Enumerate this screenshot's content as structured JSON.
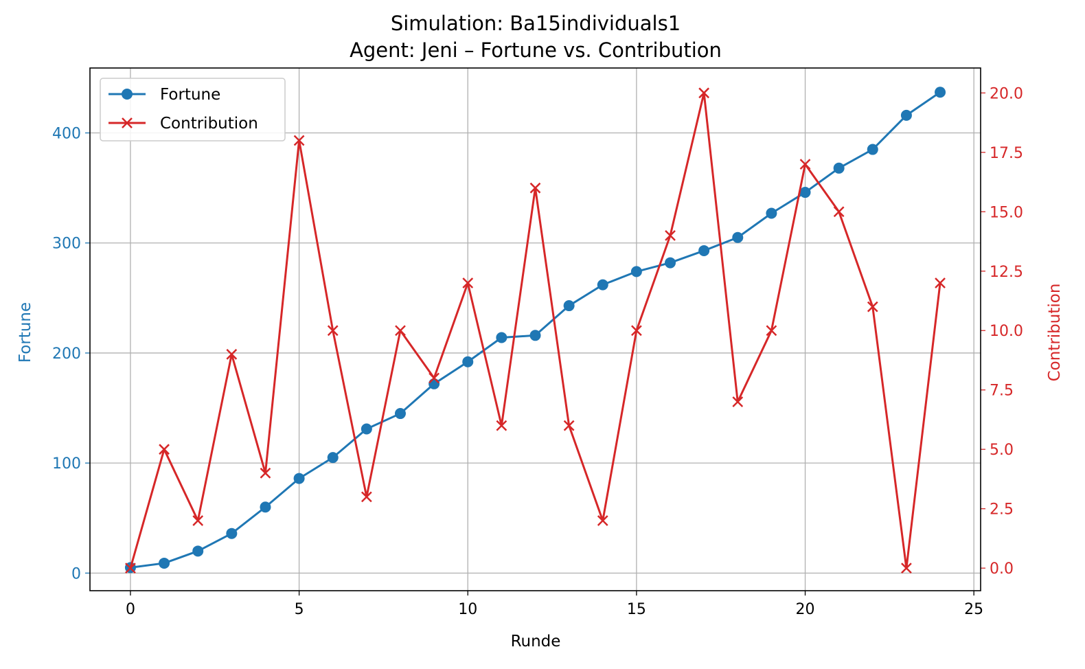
{
  "chart_data": {
    "type": "line",
    "title": "Simulation: Ba15individuals1",
    "subtitle": "Agent: Jeni – Fortune vs. Contribution",
    "xlabel": "Runde",
    "ylabel_left": "Fortune",
    "ylabel_right": "Contribution",
    "xlim": [
      -1.2,
      25.2
    ],
    "ylim_left": [
      -16,
      459
    ],
    "ylim_right": [
      -0.95,
      21.05
    ],
    "x_ticks": [
      "0",
      "5",
      "10",
      "15",
      "20",
      "25"
    ],
    "y_left_ticks": [
      "0",
      "100",
      "200",
      "300",
      "400"
    ],
    "y_right_ticks": [
      "0.0",
      "2.5",
      "5.0",
      "7.5",
      "10.0",
      "12.5",
      "15.0",
      "17.5",
      "20.0"
    ],
    "grid": true,
    "legend_position": "upper left",
    "colors": {
      "fortune": "#1f77b4",
      "contribution": "#d62728"
    },
    "x": [
      0,
      1,
      2,
      3,
      4,
      5,
      6,
      7,
      8,
      9,
      10,
      11,
      12,
      13,
      14,
      15,
      16,
      17,
      18,
      19,
      20,
      21,
      22,
      23,
      24
    ],
    "series": [
      {
        "name": "Fortune",
        "axis": "left",
        "marker": "circle",
        "values": [
          5,
          9,
          20,
          36,
          60,
          86,
          105,
          131,
          145,
          172,
          192,
          214,
          216,
          243,
          262,
          274,
          282,
          293,
          305,
          327,
          346,
          368,
          385,
          416,
          437
        ]
      },
      {
        "name": "Contribution",
        "axis": "right",
        "marker": "x",
        "values": [
          0,
          5,
          2,
          9,
          4,
          18,
          10,
          3,
          10,
          8,
          12,
          6,
          16,
          6,
          2,
          10,
          14,
          20,
          7,
          10,
          17,
          15,
          11,
          0,
          12
        ]
      }
    ]
  }
}
